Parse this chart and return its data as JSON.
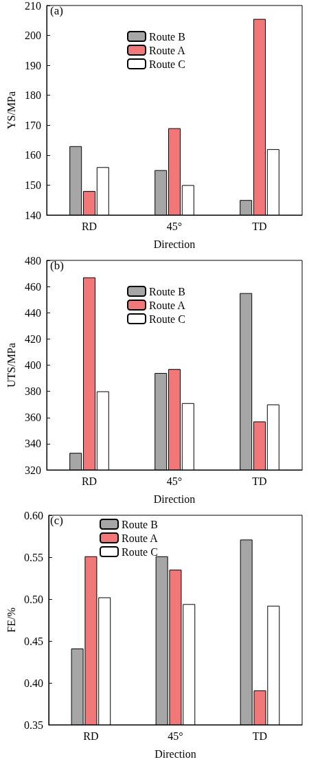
{
  "chart_data": [
    {
      "type": "bar",
      "xlabel": "Direction",
      "ylabel": "YS/MPa",
      "annotations": [
        "(a)"
      ],
      "categories": [
        "RD",
        "45°",
        "TD"
      ],
      "series": [
        {
          "name": "Route B",
          "color": "#a6a6a6",
          "values": [
            163,
            155,
            145
          ]
        },
        {
          "name": "Route A",
          "color": "#f07878",
          "values": [
            148,
            169,
            205.5
          ]
        },
        {
          "name": "Route C",
          "color": "#ffffff",
          "values": [
            156,
            150,
            162
          ]
        }
      ],
      "ylim": [
        140,
        210
      ],
      "yticks": [
        140,
        150,
        160,
        170,
        180,
        190,
        200,
        210
      ],
      "grid": false,
      "legend": "top"
    },
    {
      "type": "bar",
      "xlabel": "Direction",
      "ylabel": "UTS/MPa",
      "annotations": [
        "(b)"
      ],
      "categories": [
        "RD",
        "45°",
        "TD"
      ],
      "series": [
        {
          "name": "Route B",
          "color": "#a6a6a6",
          "values": [
            333,
            394,
            455
          ]
        },
        {
          "name": "Route A",
          "color": "#f07878",
          "values": [
            467,
            397,
            357
          ]
        },
        {
          "name": "Route C",
          "color": "#ffffff",
          "values": [
            380,
            371,
            370
          ]
        }
      ],
      "ylim": [
        320,
        480
      ],
      "yticks": [
        320,
        340,
        360,
        380,
        400,
        420,
        440,
        460,
        480
      ],
      "grid": false,
      "legend": "top"
    },
    {
      "type": "bar",
      "xlabel": "Direction",
      "ylabel": "FE/%",
      "annotations": [
        "(c)"
      ],
      "categories": [
        "RD",
        "45°",
        "TD"
      ],
      "series": [
        {
          "name": "Route B",
          "color": "#a6a6a6",
          "values": [
            0.441,
            0.551,
            0.571
          ]
        },
        {
          "name": "Route A",
          "color": "#f07878",
          "values": [
            0.551,
            0.535,
            0.391
          ]
        },
        {
          "name": "Route C",
          "color": "#ffffff",
          "values": [
            0.502,
            0.494,
            0.492
          ]
        }
      ],
      "ylim": [
        0.35,
        0.6
      ],
      "yticks": [
        0.35,
        {
          "value": 0.4,
          "label": "0.40"
        },
        0.45,
        {
          "value": 0.5,
          "label": "0.50"
        },
        0.55,
        {
          "value": 0.6,
          "label": "0.60"
        }
      ],
      "grid": false,
      "legend": "top left"
    }
  ]
}
